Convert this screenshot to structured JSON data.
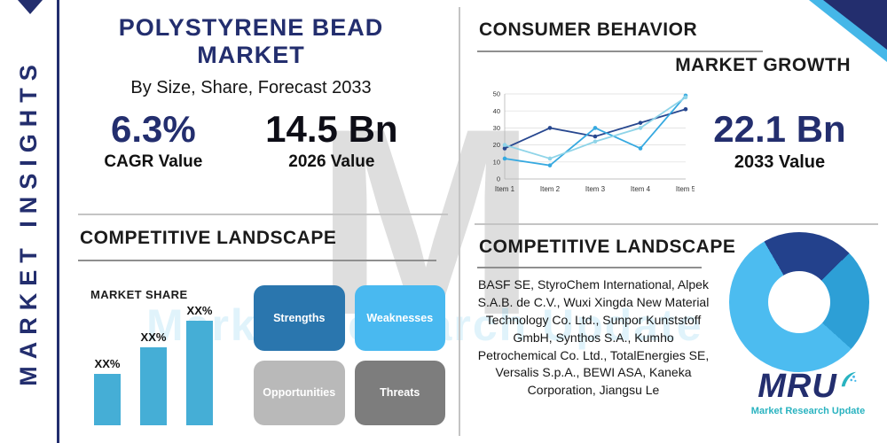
{
  "colors": {
    "navy": "#232e6e",
    "light_blue": "#45b7e8",
    "teal": "#2ab3c0",
    "divider": "#c4c4c4",
    "underline": "#8f8f8f",
    "text_dark": "#161616"
  },
  "sidebar": {
    "label": "MARKET INSIGHTS"
  },
  "header": {
    "title": "POLYSTYRENE BEAD MARKET",
    "subtitle": "By Size, Share, Forecast 2033"
  },
  "stats": {
    "cagr": {
      "value": "6.3%",
      "label": "CAGR Value"
    },
    "y2026": {
      "value": "14.5 Bn",
      "label": "2026 Value"
    },
    "y2033": {
      "value": "22.1 Bn",
      "label": "2033 Value"
    }
  },
  "sections": {
    "consumer_behavior": "CONSUMER BEHAVIOR",
    "market_growth": "MARKET GROWTH",
    "competitive_landscape_left": "COMPETITIVE LANDSCAPE",
    "market_share": "MARKET SHARE",
    "competitive_landscape_right": "COMPETITIVE LANDSCAPE"
  },
  "swot": {
    "strengths": {
      "label": "Strengths",
      "color": "#2a76ae"
    },
    "weaknesses": {
      "label": "Weaknesses",
      "color": "#49b9f0"
    },
    "opportunities": {
      "label": "Opportunities",
      "color": "#b9b9b9"
    },
    "threats": {
      "label": "Threats",
      "color": "#7d7d7d"
    }
  },
  "companies": "BASF SE, StyroChem International, Alpek S.A.B. de C.V., Wuxi Xingda New Material Technology Co. Ltd., Sunpor Kunststoff GmbH, Synthos S.A., Kumho Petrochemical Co. Ltd., TotalEnergies SE, Versalis S.p.A., BEWI ASA, Kaneka Corporation, Jiangsu Le",
  "logo": {
    "name": "MRU",
    "tagline": "Market Research Update"
  },
  "watermark": {
    "letter": "M"
  },
  "chart_data": [
    {
      "type": "line",
      "title": "MARKET GROWTH",
      "categories": [
        "Item 1",
        "Item 2",
        "Item 3",
        "Item 4",
        "Item 5"
      ],
      "series": [
        {
          "name": "series-navy",
          "color": "#27478f",
          "values": [
            18,
            30,
            25,
            33,
            41
          ]
        },
        {
          "name": "series-blue",
          "color": "#36a9e0",
          "values": [
            12,
            8,
            30,
            18,
            49
          ]
        },
        {
          "name": "series-light-blue",
          "color": "#8fd4e8",
          "values": [
            20,
            12,
            22,
            30,
            48
          ]
        }
      ],
      "ylim": [
        0,
        50
      ],
      "yticks": [
        0,
        10,
        20,
        30,
        40,
        50
      ],
      "grid": true,
      "legend": "none"
    },
    {
      "type": "bar",
      "title": "MARKET SHARE",
      "labels": [
        "XX%",
        "XX%",
        "XX%"
      ],
      "values": [
        29,
        44,
        59
      ],
      "ylim": [
        0,
        65
      ],
      "color": "#45aed6"
    },
    {
      "type": "pie",
      "donut": true,
      "start_angle": 330,
      "slices": [
        {
          "name": "segment-navy",
          "color": "#23418c",
          "value": 21
        },
        {
          "name": "segment-mid-blue",
          "color": "#2d9fd6",
          "value": 24
        },
        {
          "name": "segment-light-blue",
          "color": "#4cbcf0",
          "value": 55
        }
      ]
    }
  ]
}
